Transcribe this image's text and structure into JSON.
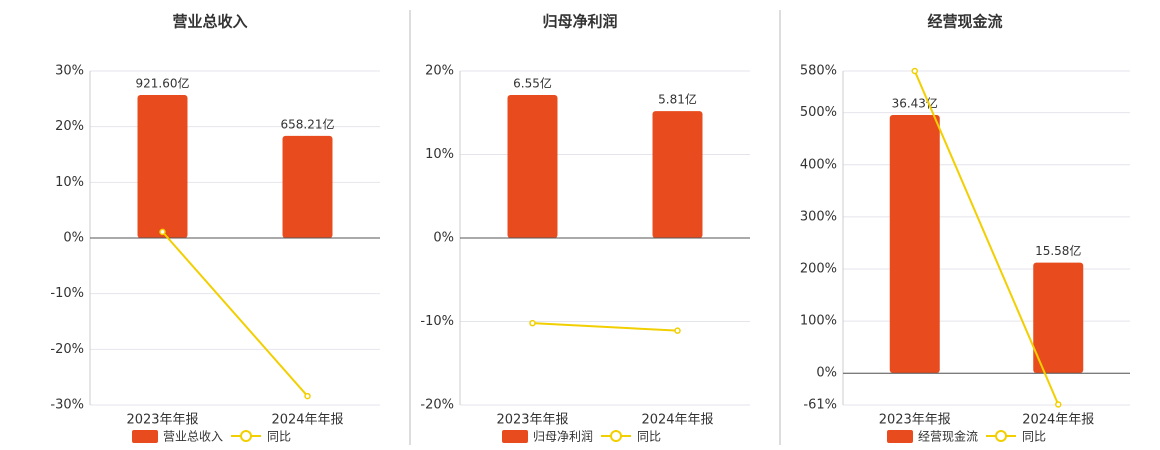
{
  "chart_data": [
    {
      "type": "bar",
      "title": "营业总收入",
      "categories": [
        "2023年年报",
        "2024年年报"
      ],
      "series": [
        {
          "name": "营业总收入",
          "color": "#e84c1e",
          "axis": "y2",
          "values": [
            921.6,
            658.21
          ],
          "value_labels": [
            "921.60亿",
            "658.21亿"
          ]
        },
        {
          "name": "同比",
          "color": "#f2cf00",
          "type": "line",
          "values": [
            1.1,
            -28.4
          ]
        }
      ],
      "ylim": [
        -30,
        30
      ],
      "yticks": [
        {
          "value": -30,
          "label": "-30%"
        },
        {
          "value": -20,
          "label": "-20%"
        },
        {
          "value": -10,
          "label": "-10%"
        },
        {
          "value": 0,
          "label": "0%"
        },
        {
          "value": 10,
          "label": "10%"
        },
        {
          "value": 20,
          "label": "20%"
        },
        {
          "value": 30,
          "label": "30%"
        }
      ],
      "y2lim": [
        -1076,
        1076
      ],
      "grid": true
    },
    {
      "type": "bar",
      "title": "归母净利润",
      "categories": [
        "2023年年报",
        "2024年年报"
      ],
      "series": [
        {
          "name": "归母净利润",
          "color": "#e84c1e",
          "axis": "y2",
          "values": [
            6.55,
            5.81
          ],
          "value_labels": [
            "6.55亿",
            "5.81亿"
          ]
        },
        {
          "name": "同比",
          "color": "#f2cf00",
          "type": "line",
          "values": [
            -10.2,
            -11.1
          ]
        }
      ],
      "ylim": [
        -20,
        20
      ],
      "yticks": [
        {
          "value": -20,
          "label": "-20%"
        },
        {
          "value": -10,
          "label": "-10%"
        },
        {
          "value": 0,
          "label": "0%"
        },
        {
          "value": 10,
          "label": "10%"
        },
        {
          "value": 20,
          "label": "20%"
        }
      ],
      "y2lim": [
        -7.65,
        7.65
      ],
      "grid": true
    },
    {
      "type": "bar",
      "title": "经营现金流",
      "categories": [
        "2023年年报",
        "2024年年报"
      ],
      "series": [
        {
          "name": "经营现金流",
          "color": "#e84c1e",
          "axis": "y2",
          "values": [
            36.43,
            15.58
          ],
          "value_labels": [
            "36.43亿",
            "15.58亿"
          ]
        },
        {
          "name": "同比",
          "color": "#f2cf00",
          "type": "line",
          "values": [
            580,
            -60
          ]
        }
      ],
      "ylim": [
        -61,
        580
      ],
      "yticks": [
        {
          "value": -61,
          "label": "-61%"
        },
        {
          "value": 0,
          "label": "0%"
        },
        {
          "value": 100,
          "label": "100%"
        },
        {
          "value": 200,
          "label": "200%"
        },
        {
          "value": 300,
          "label": "300%"
        },
        {
          "value": 400,
          "label": "400%"
        },
        {
          "value": 500,
          "label": "500%"
        },
        {
          "value": 580,
          "label": "580%"
        }
      ],
      "y2lim": [
        -4.52,
        42.64
      ],
      "grid": true
    }
  ]
}
